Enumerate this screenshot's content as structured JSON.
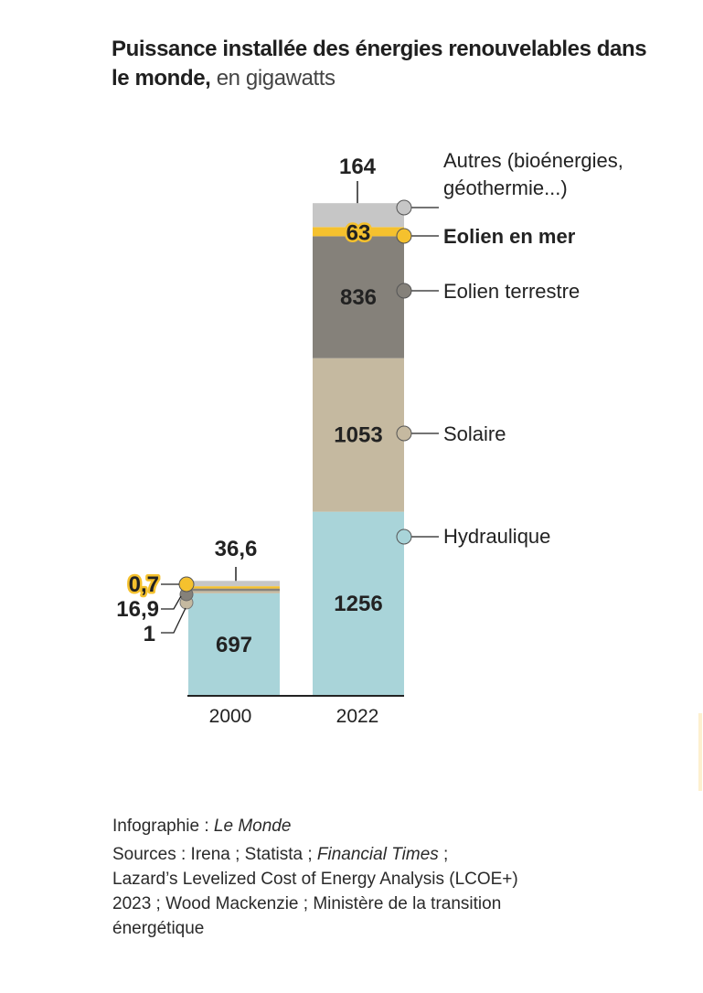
{
  "title": {
    "main": "Puissance installée des énergies renouvelables dans le monde,",
    "unit": "en gigawatts"
  },
  "chart_data": {
    "type": "bar",
    "stacked": true,
    "title": "Puissance installée des énergies renouvelables dans le monde",
    "subtitle": "en gigawatts",
    "xlabel": "",
    "ylabel": "",
    "grid": false,
    "categories": [
      "2000",
      "2022"
    ],
    "series": [
      {
        "name": "Hydraulique",
        "color": "#a9d4d9",
        "values": [
          697,
          1256
        ],
        "labels": [
          "697",
          "1256"
        ]
      },
      {
        "name": "Solaire",
        "color": "#c5b9a0",
        "values": [
          1,
          1053
        ],
        "labels": [
          "1",
          "1053"
        ]
      },
      {
        "name": "Eolien terrestre",
        "color": "#85817a",
        "values": [
          16.9,
          836
        ],
        "labels": [
          "16,9",
          "836"
        ]
      },
      {
        "name": "Eolien en mer",
        "color": "#f5c12e",
        "values": [
          0.7,
          63
        ],
        "labels": [
          "0,7",
          "63"
        ],
        "highlight": true
      },
      {
        "name": "Autres (bioénergies, géothermie...)",
        "color": "#c6c6c6",
        "values": [
          36.6,
          164
        ],
        "labels": [
          "36,6",
          "164"
        ]
      }
    ],
    "legend": {
      "placement": "right",
      "entries": [
        "Autres (bioénergies,",
        "géothermie...)",
        "Eolien en mer",
        "Eolien terrestre",
        "Solaire",
        "Hydraulique"
      ]
    }
  },
  "footer": {
    "credit_label": "Infographie :",
    "credit_source": "Le Monde",
    "sources_label": "Sources : Irena ; Statista ;",
    "sources_italic": "Financial Times",
    "sources_rest_1": " ;",
    "sources_line2": "Lazard’s Levelized Cost of Energy Analysis (LCOE+)",
    "sources_line3": "2023 ; Wood Mackenzie ; Ministère de la transition",
    "sources_line4": "énergétique"
  }
}
